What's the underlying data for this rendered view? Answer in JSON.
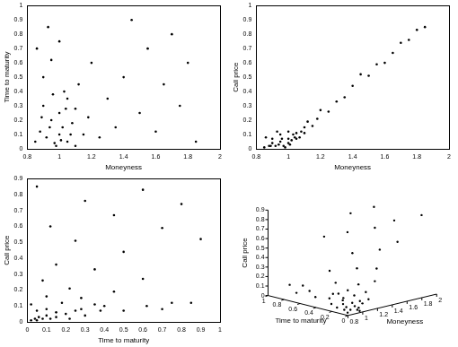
{
  "chart_data": [
    {
      "type": "scatter",
      "x_label": "Moneyness",
      "y_label": "Time to maturity",
      "color": "#000000",
      "marker": "point",
      "grid": false,
      "xlim": [
        0.8,
        2
      ],
      "ylim": [
        0,
        1
      ],
      "xticks": [
        0.8,
        1,
        1.2,
        1.4,
        1.6,
        1.8,
        2
      ],
      "yticks": [
        0,
        0.1,
        0.2,
        0.3,
        0.4,
        0.5,
        0.6,
        0.7,
        0.8,
        0.9,
        1
      ],
      "x": [
        0.85,
        0.88,
        0.9,
        0.92,
        0.95,
        0.97,
        1.0,
        1.0,
        1.02,
        1.05,
        1.05,
        1.08,
        1.1,
        1.1,
        1.12,
        0.9,
        0.95,
        1.0,
        0.86,
        0.93,
        1.03,
        1.15,
        1.18,
        1.2,
        1.25,
        1.3,
        1.35,
        1.4,
        1.45,
        1.5,
        1.55,
        1.6,
        1.65,
        1.7,
        1.75,
        1.8,
        1.85,
        0.98,
        1.01,
        0.94,
        1.07,
        0.89,
        1.04,
        0.96
      ],
      "values": [
        0.05,
        0.12,
        0.3,
        0.08,
        0.2,
        0.04,
        0.1,
        0.25,
        0.15,
        0.05,
        0.35,
        0.18,
        0.02,
        0.28,
        0.45,
        0.5,
        0.62,
        0.75,
        0.7,
        0.85,
        0.4,
        0.1,
        0.22,
        0.6,
        0.08,
        0.35,
        0.15,
        0.5,
        0.9,
        0.25,
        0.7,
        0.12,
        0.45,
        0.8,
        0.3,
        0.6,
        0.05,
        0.02,
        0.06,
        0.15,
        0.1,
        0.22,
        0.28,
        0.38
      ]
    },
    {
      "type": "scatter",
      "x_label": "Moneyness",
      "y_label": "Call price",
      "color": "#000000",
      "marker": "point",
      "grid": false,
      "xlim": [
        0.8,
        2
      ],
      "ylim": [
        0,
        1
      ],
      "xticks": [
        0.8,
        1,
        1.2,
        1.4,
        1.6,
        1.8,
        2
      ],
      "yticks": [
        0,
        0.1,
        0.2,
        0.3,
        0.4,
        0.5,
        0.6,
        0.7,
        0.8,
        0.9,
        1
      ],
      "x": [
        0.85,
        0.88,
        0.9,
        0.92,
        0.95,
        0.97,
        1.0,
        1.0,
        1.02,
        1.05,
        1.05,
        1.08,
        1.1,
        1.1,
        1.12,
        0.9,
        0.95,
        1.0,
        0.86,
        0.93,
        1.03,
        1.15,
        1.18,
        1.2,
        1.25,
        1.3,
        1.35,
        1.4,
        1.45,
        1.5,
        1.55,
        1.6,
        1.65,
        1.7,
        1.75,
        1.8,
        1.85,
        0.98,
        1.01,
        0.94,
        1.07,
        0.89,
        1.04,
        0.96
      ],
      "values": [
        0.01,
        0.02,
        0.04,
        0.02,
        0.05,
        0.02,
        0.04,
        0.07,
        0.06,
        0.07,
        0.11,
        0.12,
        0.11,
        0.15,
        0.19,
        0.07,
        0.1,
        0.12,
        0.08,
        0.12,
        0.1,
        0.16,
        0.21,
        0.27,
        0.26,
        0.33,
        0.36,
        0.44,
        0.52,
        0.51,
        0.59,
        0.6,
        0.67,
        0.74,
        0.76,
        0.83,
        0.85,
        0.01,
        0.03,
        0.03,
        0.08,
        0.02,
        0.08,
        0.07
      ]
    },
    {
      "type": "scatter",
      "x_label": "Time to maturity",
      "y_label": "Call price",
      "color": "#000000",
      "marker": "point",
      "grid": false,
      "xlim": [
        0,
        1
      ],
      "ylim": [
        0,
        0.9
      ],
      "xticks": [
        0,
        0.1,
        0.2,
        0.3,
        0.4,
        0.5,
        0.6,
        0.7,
        0.8,
        0.9,
        1
      ],
      "yticks": [
        0,
        0.1,
        0.2,
        0.3,
        0.4,
        0.5,
        0.6,
        0.7,
        0.8,
        0.9
      ],
      "x": [
        0.05,
        0.12,
        0.3,
        0.08,
        0.2,
        0.04,
        0.1,
        0.25,
        0.15,
        0.05,
        0.35,
        0.18,
        0.02,
        0.28,
        0.45,
        0.5,
        0.62,
        0.75,
        0.7,
        0.85,
        0.4,
        0.1,
        0.22,
        0.6,
        0.08,
        0.35,
        0.15,
        0.5,
        0.9,
        0.25,
        0.7,
        0.12,
        0.45,
        0.8,
        0.3,
        0.6,
        0.05,
        0.02,
        0.06,
        0.15,
        0.1,
        0.22,
        0.28,
        0.38
      ],
      "values": [
        0.01,
        0.02,
        0.04,
        0.02,
        0.05,
        0.02,
        0.04,
        0.07,
        0.06,
        0.07,
        0.11,
        0.12,
        0.11,
        0.15,
        0.19,
        0.07,
        0.1,
        0.12,
        0.08,
        0.12,
        0.1,
        0.16,
        0.21,
        0.27,
        0.26,
        0.33,
        0.36,
        0.44,
        0.52,
        0.51,
        0.59,
        0.6,
        0.67,
        0.74,
        0.76,
        0.83,
        0.85,
        0.01,
        0.03,
        0.03,
        0.08,
        0.02,
        0.08,
        0.07
      ]
    },
    {
      "type": "scatter3d",
      "x_label": "Moneyness",
      "y_label": "Time to maturity",
      "z_label": "Call price",
      "color": "#000000",
      "marker": "point",
      "grid": false,
      "xlim": [
        0.8,
        2
      ],
      "ylim": [
        0,
        1
      ],
      "zlim": [
        0,
        0.9
      ],
      "xticks": [
        0.8,
        1,
        1.2,
        1.4,
        1.6,
        1.8,
        2
      ],
      "yticks": [
        0,
        0.2,
        0.4,
        0.6,
        0.8,
        1
      ],
      "zticks": [
        0,
        0.1,
        0.2,
        0.3,
        0.4,
        0.5,
        0.6,
        0.7,
        0.8,
        0.9
      ],
      "x": [
        0.85,
        0.88,
        0.9,
        0.92,
        0.95,
        0.97,
        1.0,
        1.0,
        1.02,
        1.05,
        1.05,
        1.08,
        1.1,
        1.1,
        1.12,
        0.9,
        0.95,
        1.0,
        0.86,
        0.93,
        1.03,
        1.15,
        1.18,
        1.2,
        1.25,
        1.3,
        1.35,
        1.4,
        1.45,
        1.5,
        1.55,
        1.6,
        1.65,
        1.7,
        1.75,
        1.8,
        1.85,
        0.98,
        1.01,
        0.94,
        1.07,
        0.89,
        1.04,
        0.96
      ],
      "y": [
        0.05,
        0.12,
        0.3,
        0.08,
        0.2,
        0.04,
        0.1,
        0.25,
        0.15,
        0.05,
        0.35,
        0.18,
        0.02,
        0.28,
        0.45,
        0.5,
        0.62,
        0.75,
        0.7,
        0.85,
        0.4,
        0.1,
        0.22,
        0.6,
        0.08,
        0.35,
        0.15,
        0.5,
        0.9,
        0.25,
        0.7,
        0.12,
        0.45,
        0.8,
        0.3,
        0.6,
        0.05,
        0.02,
        0.06,
        0.15,
        0.1,
        0.22,
        0.28,
        0.38
      ],
      "z": [
        0.01,
        0.02,
        0.04,
        0.02,
        0.05,
        0.02,
        0.04,
        0.07,
        0.06,
        0.07,
        0.11,
        0.12,
        0.11,
        0.15,
        0.19,
        0.07,
        0.1,
        0.12,
        0.08,
        0.12,
        0.1,
        0.16,
        0.21,
        0.27,
        0.26,
        0.33,
        0.36,
        0.44,
        0.52,
        0.51,
        0.59,
        0.6,
        0.67,
        0.74,
        0.76,
        0.83,
        0.85,
        0.01,
        0.03,
        0.03,
        0.08,
        0.02,
        0.08,
        0.07
      ]
    }
  ]
}
